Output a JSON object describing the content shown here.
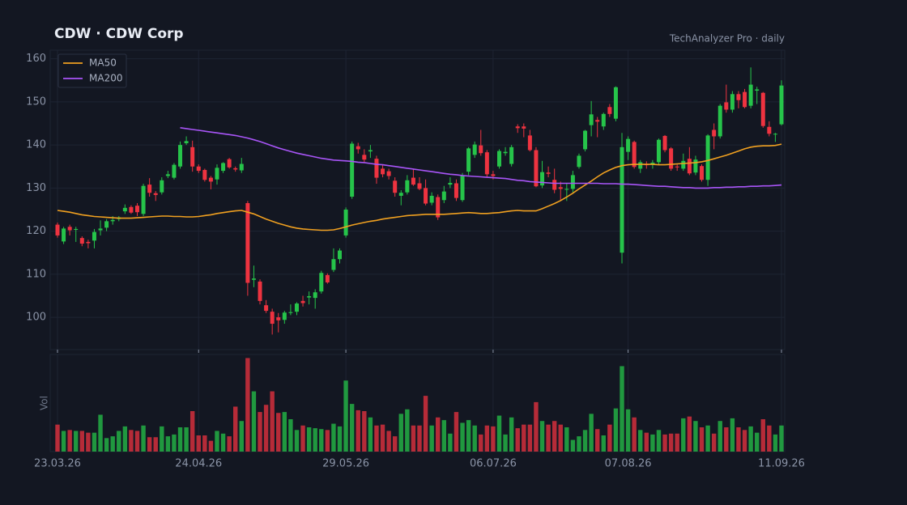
{
  "chart_data": {
    "type": "candlestick",
    "title": "CDW  ·  CDW Corp",
    "subtitle": "TechAnalyzer Pro · daily",
    "volume_label": "Vol",
    "up_color": "#26c44a",
    "down_color": "#ee3340",
    "grid": true,
    "legend": "upper left",
    "categories": [
      "23.03.26",
      null,
      null,
      null,
      null,
      null,
      null,
      null,
      null,
      null,
      null,
      null,
      null,
      null,
      null,
      null,
      null,
      null,
      null,
      null,
      null,
      null,
      null,
      "24.04.26",
      null,
      null,
      null,
      null,
      null,
      null,
      null,
      null,
      null,
      null,
      null,
      null,
      null,
      null,
      null,
      null,
      null,
      null,
      null,
      null,
      null,
      null,
      null,
      "29.05.26",
      null,
      null,
      null,
      null,
      null,
      null,
      null,
      null,
      null,
      null,
      null,
      null,
      null,
      null,
      null,
      null,
      null,
      null,
      null,
      null,
      null,
      null,
      null,
      "06.07.26",
      null,
      null,
      null,
      null,
      null,
      null,
      null,
      null,
      null,
      null,
      null,
      null,
      null,
      null,
      null,
      null,
      null,
      null,
      null,
      null,
      null,
      "07.08.26",
      null,
      null,
      null,
      null,
      null,
      null,
      null,
      null,
      null,
      null,
      null,
      null,
      null,
      null,
      null,
      null,
      null,
      null,
      null,
      null,
      null,
      null,
      null,
      null,
      "11.09.26"
    ],
    "ohlc": [
      [
        121.5,
        122,
        118.5,
        119
      ],
      [
        117.6,
        121,
        117,
        120.6
      ],
      [
        121,
        121.5,
        119,
        120.2
      ],
      [
        120.3,
        121,
        117.5,
        120.5
      ],
      [
        118.4,
        118.8,
        116.5,
        117.1
      ],
      [
        117.5,
        118,
        116,
        117.2
      ],
      [
        117.8,
        120.5,
        116,
        119.8
      ],
      [
        120.2,
        122.5,
        119,
        120.6
      ],
      [
        120.8,
        122.8,
        120,
        122.3
      ],
      [
        122.3,
        123.5,
        121.5,
        122.6
      ],
      [
        122.8,
        123.5,
        122.3,
        123.2
      ],
      [
        124.6,
        126.2,
        124,
        125.4
      ],
      [
        125.6,
        126,
        124,
        124.3
      ],
      [
        125.9,
        126.5,
        123.5,
        124.4
      ],
      [
        124,
        131,
        123.5,
        130.5
      ],
      [
        130.8,
        132.3,
        128,
        128.9
      ],
      [
        128.8,
        129.3,
        127,
        128.4
      ],
      [
        129,
        132.5,
        128.5,
        131.8
      ],
      [
        132.8,
        134,
        132.3,
        133.2
      ],
      [
        132.4,
        135.8,
        132,
        135.4
      ],
      [
        135,
        140.8,
        134.5,
        140
      ],
      [
        140.4,
        142,
        140,
        140.9
      ],
      [
        139.5,
        141,
        133.8,
        135
      ],
      [
        135,
        135.5,
        133.5,
        134
      ],
      [
        134.2,
        134.5,
        131.5,
        131.9
      ],
      [
        132.4,
        132.8,
        129.7,
        131.5
      ],
      [
        132,
        135.5,
        130.8,
        134.7
      ],
      [
        134,
        136,
        133.5,
        135.8
      ],
      [
        136.7,
        137,
        134.5,
        134.8
      ],
      [
        134.6,
        135,
        133.8,
        134.3
      ],
      [
        134.1,
        137,
        133.5,
        135.6
      ],
      [
        126.5,
        127,
        105,
        108
      ],
      [
        108.7,
        112,
        107,
        109
      ],
      [
        108.3,
        108.8,
        103,
        103.8
      ],
      [
        102.8,
        104,
        101,
        101.5
      ],
      [
        101.3,
        102,
        96,
        98.5
      ],
      [
        100,
        101,
        96.5,
        99.3
      ],
      [
        99.4,
        101.5,
        98.5,
        101.1
      ],
      [
        101,
        103,
        100.5,
        101.2
      ],
      [
        101.3,
        103.5,
        100.5,
        103.2
      ],
      [
        103.8,
        105,
        102.5,
        103.3
      ],
      [
        104.6,
        106,
        103,
        104.9
      ],
      [
        104.5,
        106.5,
        102,
        105.8
      ],
      [
        106,
        110.8,
        105.5,
        110.3
      ],
      [
        109.8,
        110.2,
        107.8,
        108.1
      ],
      [
        111,
        116,
        110.5,
        113.5
      ],
      [
        113.5,
        116,
        112.5,
        115.5
      ],
      [
        119,
        125.5,
        118.5,
        125
      ],
      [
        128,
        140.8,
        127.5,
        140.3
      ],
      [
        139.7,
        140.5,
        138,
        139
      ],
      [
        137.7,
        139,
        136,
        136.6
      ],
      [
        138.5,
        140,
        137,
        138.8
      ],
      [
        136.8,
        137.5,
        131,
        132.4
      ],
      [
        134.5,
        135.5,
        132.5,
        133.2
      ],
      [
        133.9,
        134.5,
        132,
        132.8
      ],
      [
        131.7,
        132.5,
        128,
        128.9
      ],
      [
        128.2,
        129.5,
        126,
        128.9
      ],
      [
        129,
        133,
        128.5,
        131.8
      ],
      [
        132.4,
        134.5,
        130.5,
        130.8
      ],
      [
        131.1,
        132.5,
        129.5,
        129.8
      ],
      [
        130,
        132,
        126,
        126.4
      ],
      [
        126.6,
        129,
        126,
        128.2
      ],
      [
        127.9,
        128.5,
        122.6,
        123.2
      ],
      [
        127.2,
        130.5,
        126.5,
        129.2
      ],
      [
        130.8,
        132.5,
        130,
        131.2
      ],
      [
        131.1,
        132,
        127,
        127.7
      ],
      [
        127.2,
        133.5,
        126.8,
        132.8
      ],
      [
        133.8,
        139.5,
        133,
        139.2
      ],
      [
        137.7,
        140.8,
        137,
        140.1
      ],
      [
        139.9,
        143.5,
        137.5,
        138.1
      ],
      [
        138.3,
        138.8,
        132.5,
        133.2
      ],
      [
        133.2,
        134,
        132,
        132.8
      ],
      [
        135,
        139,
        134.5,
        138.6
      ],
      [
        138.1,
        139.5,
        137.5,
        138.4
      ],
      [
        135.6,
        140,
        135,
        139.5
      ],
      [
        144.3,
        144.8,
        142.8,
        143.9
      ],
      [
        144.3,
        145,
        141.8,
        143.8
      ],
      [
        142.2,
        143.5,
        138.5,
        138.8
      ],
      [
        138.8,
        139.5,
        130.2,
        130.4
      ],
      [
        130.6,
        136.3,
        130,
        133.7
      ],
      [
        133.6,
        135,
        132.5,
        133.3
      ],
      [
        131.9,
        134.5,
        128.8,
        129.6
      ],
      [
        130.2,
        131.5,
        127,
        129.8
      ],
      [
        129.6,
        131,
        127,
        129.8
      ],
      [
        129.8,
        134,
        129,
        133
      ],
      [
        134.9,
        138,
        134.5,
        137.5
      ],
      [
        139,
        143.5,
        138.5,
        143.3
      ],
      [
        144.6,
        150.2,
        142,
        147.1
      ],
      [
        145.8,
        146.5,
        141.8,
        145.4
      ],
      [
        144.3,
        147.5,
        143.5,
        147.2
      ],
      [
        148.8,
        149.5,
        146.5,
        147.2
      ],
      [
        146.1,
        153.6,
        145.5,
        153.4
      ],
      [
        115,
        142.8,
        112.5,
        139.5
      ],
      [
        138.4,
        142,
        136.5,
        141.4
      ],
      [
        140.7,
        141,
        134.5,
        134.9
      ],
      [
        134.5,
        136.5,
        133.5,
        136
      ],
      [
        135.5,
        136.2,
        134.5,
        135.3
      ],
      [
        135.6,
        136.5,
        134.5,
        135.9
      ],
      [
        136,
        141.5,
        135.5,
        141.2
      ],
      [
        142.1,
        142.3,
        138.3,
        138.8
      ],
      [
        139.2,
        139.5,
        134,
        134.5
      ],
      [
        135,
        135.5,
        134,
        134.8
      ],
      [
        134.5,
        138,
        134,
        136.3
      ],
      [
        136.8,
        139.5,
        133,
        133.4
      ],
      [
        133.6,
        137.5,
        133,
        136.6
      ],
      [
        135.1,
        135.5,
        131.5,
        131.9
      ],
      [
        131.9,
        142.5,
        130.5,
        142.2
      ],
      [
        143.5,
        145,
        139,
        142
      ],
      [
        142,
        149.5,
        141.5,
        149.1
      ],
      [
        149.9,
        154,
        147.5,
        148.2
      ],
      [
        148.2,
        152.5,
        147.5,
        151.8
      ],
      [
        151.8,
        152.5,
        148.5,
        150.4
      ],
      [
        152.3,
        153,
        148.5,
        148.8
      ],
      [
        149.1,
        158,
        148.5,
        154
      ],
      [
        152.6,
        153.5,
        149.5,
        152.9
      ],
      [
        152.1,
        152.3,
        144,
        144.4
      ],
      [
        144.2,
        145.5,
        142,
        142.6
      ],
      [
        142.5,
        142.8,
        140.7,
        142.6
      ],
      [
        144.8,
        155,
        144.5,
        153.8
      ]
    ],
    "volume": [
      30,
      23,
      24,
      23,
      23,
      21,
      21,
      41,
      15,
      17,
      23,
      28,
      24,
      23,
      29,
      16,
      16,
      28,
      17,
      19,
      27,
      27,
      45,
      18,
      18,
      12,
      23,
      20,
      17,
      50,
      34,
      104,
      67,
      44,
      52,
      67,
      43,
      44,
      36,
      24,
      29,
      27,
      26,
      25,
      24,
      31,
      28,
      79,
      53,
      46,
      45,
      38,
      29,
      30,
      23,
      17,
      42,
      47,
      29,
      29,
      62,
      29,
      38,
      35,
      20,
      44,
      32,
      35,
      29,
      19,
      29,
      28,
      40,
      19,
      38,
      26,
      30,
      30,
      55,
      34,
      30,
      34,
      30,
      27,
      13,
      17,
      24,
      42,
      25,
      18,
      30,
      48,
      95,
      47,
      38,
      24,
      21,
      19,
      24,
      19,
      20,
      20,
      37,
      39,
      34,
      27,
      29,
      20,
      34,
      27,
      37,
      27,
      24,
      28,
      21,
      36,
      29,
      19,
      29
    ],
    "series": [
      {
        "name": "MA50",
        "color": "#f0a020",
        "values": [
          124.8,
          124.6,
          124.4,
          124.1,
          123.8,
          123.6,
          123.4,
          123.3,
          123.2,
          123.1,
          123.0,
          123.0,
          123.0,
          123.1,
          123.2,
          123.3,
          123.4,
          123.5,
          123.5,
          123.4,
          123.4,
          123.3,
          123.3,
          123.4,
          123.6,
          123.8,
          124.1,
          124.3,
          124.5,
          124.7,
          124.8,
          124.4,
          124.0,
          123.4,
          122.8,
          122.3,
          121.8,
          121.4,
          121.0,
          120.7,
          120.5,
          120.4,
          120.3,
          120.2,
          120.2,
          120.3,
          120.6,
          121.0,
          121.4,
          121.7,
          122.0,
          122.3,
          122.5,
          122.8,
          123.0,
          123.2,
          123.4,
          123.6,
          123.7,
          123.8,
          123.9,
          123.9,
          123.9,
          123.9,
          124.0,
          124.1,
          124.2,
          124.3,
          124.2,
          124.1,
          124.1,
          124.2,
          124.3,
          124.5,
          124.7,
          124.8,
          124.7,
          124.7,
          124.7,
          125.2,
          125.8,
          126.4,
          127.1,
          127.9,
          128.8,
          129.8,
          130.7,
          131.6,
          132.6,
          133.5,
          134.2,
          134.8,
          135.2,
          135.4,
          135.5,
          135.5,
          135.5,
          135.5,
          135.4,
          135.4,
          135.5,
          135.6,
          135.7,
          135.8,
          135.9,
          136.1,
          136.4,
          136.8,
          137.2,
          137.6,
          138.1,
          138.6,
          139.1,
          139.5,
          139.7,
          139.8,
          139.8,
          139.9,
          140.2
        ]
      },
      {
        "name": "MA200",
        "color": "#a855f7",
        "values": [
          null,
          null,
          null,
          null,
          null,
          null,
          null,
          null,
          null,
          null,
          null,
          null,
          null,
          null,
          null,
          null,
          null,
          null,
          null,
          null,
          144.0,
          143.8,
          143.6,
          143.4,
          143.2,
          143.0,
          142.8,
          142.6,
          142.4,
          142.2,
          141.9,
          141.6,
          141.2,
          140.8,
          140.3,
          139.8,
          139.3,
          138.9,
          138.5,
          138.1,
          137.8,
          137.5,
          137.2,
          136.9,
          136.7,
          136.5,
          136.4,
          136.3,
          136.2,
          136.0,
          135.9,
          135.7,
          135.5,
          135.4,
          135.2,
          135.0,
          134.8,
          134.6,
          134.4,
          134.2,
          134.0,
          133.8,
          133.6,
          133.4,
          133.2,
          133.1,
          132.9,
          132.8,
          132.7,
          132.6,
          132.5,
          132.4,
          132.3,
          132.2,
          132.0,
          131.8,
          131.7,
          131.5,
          131.4,
          131.3,
          131.2,
          131.1,
          131.1,
          131.1,
          131.1,
          131.1,
          131.1,
          131.1,
          131.1,
          131.0,
          131.0,
          131.0,
          130.9,
          130.9,
          130.8,
          130.7,
          130.6,
          130.5,
          130.4,
          130.4,
          130.3,
          130.2,
          130.1,
          130.1,
          130.0,
          130.0,
          130.0,
          130.1,
          130.1,
          130.2,
          130.2,
          130.3,
          130.3,
          130.4,
          130.4,
          130.5,
          130.5,
          130.6,
          130.7
        ]
      }
    ],
    "ylim": [
      92.5,
      162
    ],
    "yticks": [
      100,
      110,
      120,
      130,
      140,
      150,
      160
    ],
    "volume_ylim": [
      0,
      108
    ]
  }
}
